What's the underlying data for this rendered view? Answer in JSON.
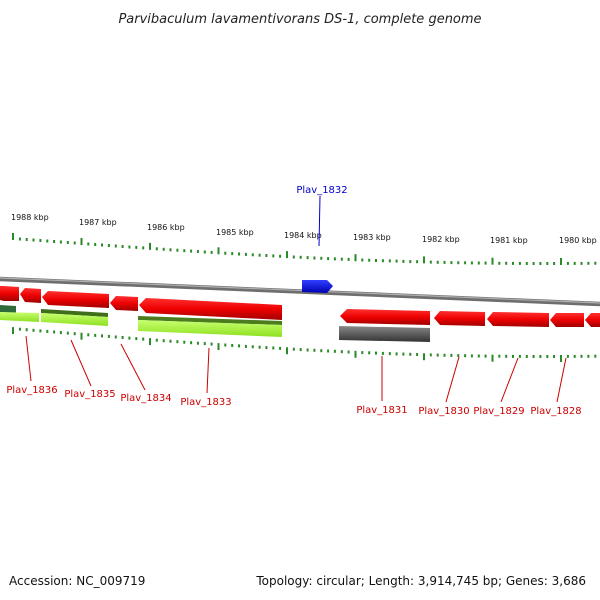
{
  "title": "Parvibaculum lavamentivorans DS-1, complete genome",
  "colors": {
    "forward_gene": "#ff0000",
    "highlight_gene": "#0000ff",
    "reverse_gene": "#ff0000",
    "rna_light": "#a6f03c",
    "dark_gene": "#555555",
    "green_dark": "#2e7d32",
    "tick": "#2a8a2a",
    "backbone": "#8a8a8a"
  },
  "kbp_labels": [
    "1988 kbp",
    "1987 kbp",
    "1986 kbp",
    "1985 kbp",
    "1984 kbp",
    "1983 kbp",
    "1982 kbp",
    "1981 kbp",
    "1980 kbp"
  ],
  "genes": [
    {
      "id": "Plav_1832",
      "label": "Plav_1832",
      "strand": "forward",
      "color": "blue"
    },
    {
      "id": "Plav_1836",
      "label": "Plav_1836",
      "strand": "reverse",
      "color": "red"
    },
    {
      "id": "Plav_1835",
      "label": "Plav_1835",
      "strand": "reverse",
      "color": "red"
    },
    {
      "id": "Plav_1834",
      "label": "Plav_1834",
      "strand": "reverse",
      "color": "red"
    },
    {
      "id": "Plav_1833",
      "label": "Plav_1833",
      "strand": "reverse",
      "color": "red"
    },
    {
      "id": "Plav_1831",
      "label": "Plav_1831",
      "strand": "reverse",
      "color": "red"
    },
    {
      "id": "Plav_1830",
      "label": "Plav_1830",
      "strand": "reverse",
      "color": "red"
    },
    {
      "id": "Plav_1829",
      "label": "Plav_1829",
      "strand": "reverse",
      "color": "red"
    },
    {
      "id": "Plav_1828",
      "label": "Plav_1828",
      "strand": "reverse",
      "color": "red"
    }
  ],
  "footer": {
    "accession": "Accession: NC_009719",
    "summary": "Topology: circular; Length: 3,914,745 bp; Genes: 3,686"
  }
}
